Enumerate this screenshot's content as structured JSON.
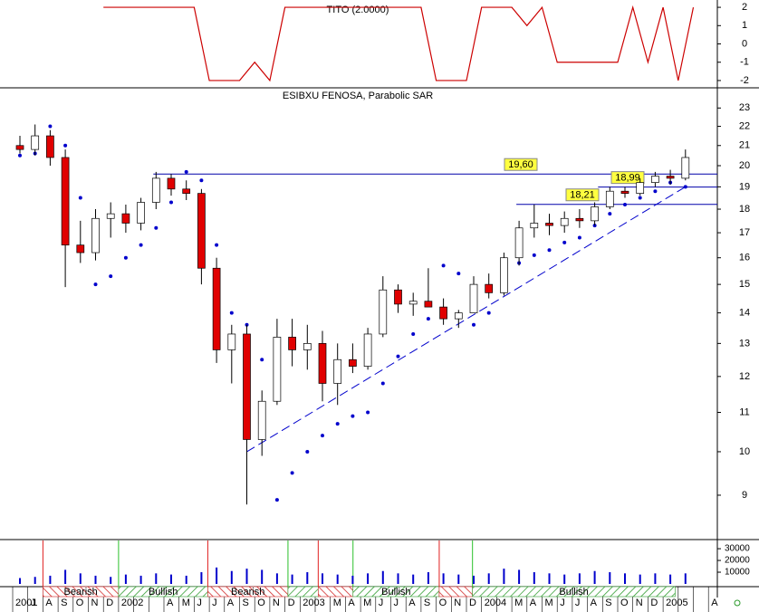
{
  "chart_data": {
    "type": "candlestick",
    "title": "ESIBXU FENOSA, Parabolic SAR",
    "categories": [
      "2001",
      "J",
      "A",
      "S",
      "O",
      "N",
      "D",
      "2002",
      null,
      null,
      "A",
      "M",
      "J",
      "J",
      "A",
      "S",
      "O",
      "N",
      "D",
      "2003",
      null,
      "M",
      "A",
      "M",
      "J",
      "J",
      "A",
      "S",
      "O",
      "N",
      "D",
      "2004",
      null,
      "M",
      "A",
      "M",
      "J",
      "J",
      "A",
      "S",
      "O",
      "N",
      "D",
      "2005",
      null,
      null,
      "A"
    ],
    "open": [
      21.0,
      20.8,
      21.5,
      20.4,
      16.5,
      16.2,
      17.6,
      17.8,
      17.4,
      18.3,
      19.4,
      18.9,
      18.7,
      15.6,
      12.8,
      13.3,
      10.3,
      11.3,
      13.2,
      12.8,
      13.0,
      11.8,
      12.5,
      12.3,
      13.3,
      14.8,
      14.3,
      14.4,
      14.2,
      13.8,
      14.0,
      15.0,
      14.7,
      16.0,
      17.2,
      17.4,
      17.3,
      17.6,
      17.5,
      18.1,
      18.8,
      18.7,
      19.2,
      19.5,
      19.4,
      null,
      null
    ],
    "high": [
      21.5,
      22.1,
      21.8,
      20.8,
      17.5,
      18.0,
      18.3,
      18.2,
      18.5,
      19.7,
      19.6,
      19.3,
      18.9,
      16.0,
      13.6,
      13.6,
      11.6,
      13.8,
      13.8,
      13.6,
      13.4,
      13.0,
      13.0,
      13.5,
      15.3,
      15.0,
      14.7,
      15.6,
      14.5,
      14.1,
      15.3,
      15.4,
      16.2,
      17.5,
      18.2,
      17.8,
      17.9,
      18.0,
      18.3,
      19.0,
      19.0,
      19.4,
      19.7,
      19.8,
      20.8,
      null,
      null
    ],
    "low": [
      20.6,
      20.5,
      20.0,
      14.9,
      15.8,
      15.9,
      16.8,
      17.0,
      17.1,
      18.0,
      18.6,
      18.4,
      15.0,
      12.4,
      11.8,
      8.8,
      9.9,
      11.2,
      12.3,
      12.2,
      11.3,
      11.2,
      12.1,
      12.2,
      13.2,
      14.0,
      13.9,
      14.2,
      13.6,
      13.5,
      14.0,
      14.5,
      14.6,
      15.7,
      16.8,
      16.9,
      17.0,
      17.2,
      17.3,
      18.0,
      18.5,
      18.6,
      19.0,
      19.1,
      19.3,
      null,
      null
    ],
    "close": [
      20.8,
      21.5,
      20.4,
      16.5,
      16.2,
      17.6,
      17.8,
      17.4,
      18.3,
      19.4,
      18.9,
      18.7,
      15.6,
      12.8,
      13.3,
      10.3,
      11.3,
      13.2,
      12.8,
      13.0,
      11.8,
      12.5,
      12.3,
      13.3,
      14.8,
      14.3,
      14.4,
      14.2,
      13.8,
      14.0,
      15.0,
      14.7,
      16.0,
      17.2,
      17.4,
      17.3,
      17.6,
      17.5,
      18.1,
      18.8,
      18.7,
      19.2,
      19.5,
      19.4,
      20.4,
      null,
      null
    ],
    "sar": {
      "color": "#0000cc",
      "values": [
        20.5,
        20.6,
        22.0,
        21.0,
        18.5,
        15.0,
        15.3,
        16.0,
        16.5,
        17.2,
        18.3,
        19.7,
        19.3,
        16.5,
        14.0,
        13.6,
        12.5,
        8.9,
        9.5,
        10.0,
        10.4,
        10.7,
        10.9,
        11.0,
        11.8,
        12.6,
        13.3,
        13.8,
        15.7,
        15.4,
        13.6,
        14.0,
        14.8,
        15.8,
        16.1,
        16.3,
        16.6,
        16.8,
        17.3,
        17.8,
        18.2,
        18.5,
        18.8,
        19.2,
        19.0,
        null,
        null
      ]
    },
    "up_color": "#ffffff",
    "down_color": "#e00000",
    "log_scale": true,
    "ylim": [
      8.1,
      24.1
    ],
    "yticks": [
      9,
      10,
      11,
      12,
      13,
      14,
      15,
      16,
      17,
      18,
      19,
      20,
      21,
      22,
      23
    ],
    "trendline": {
      "x": [
        15,
        44
      ],
      "values": [
        10.0,
        19.0
      ],
      "color": "#0000cc"
    },
    "levels": [
      {
        "value": 19.6,
        "label": "19,60",
        "from": 9.3
      },
      {
        "value": 18.99,
        "label": "18,99",
        "from": 38.7
      },
      {
        "value": 18.21,
        "label": "18,21",
        "from": 33.3
      }
    ],
    "indicator": {
      "title": "TITO (2.0000)",
      "color": "#cc0000",
      "values": [
        null,
        null,
        null,
        null,
        null,
        null,
        2,
        2,
        2,
        2,
        2,
        2,
        2,
        -2,
        -2,
        -2,
        -1,
        -2,
        2,
        2,
        2,
        2,
        2,
        2,
        2,
        2,
        2,
        2,
        -2,
        -2,
        -2,
        2,
        2,
        2,
        1,
        2,
        -1,
        -1,
        -1,
        -1,
        -1,
        2,
        -1,
        2,
        -2,
        2,
        null
      ],
      "ylim": [
        -2.3,
        2.4
      ],
      "yticks": [
        2,
        1,
        0,
        -1,
        -2
      ]
    },
    "volume": {
      "color": "#0000cc",
      "values": [
        5000,
        6000,
        7000,
        12000,
        9000,
        7000,
        6000,
        8000,
        7000,
        9000,
        8000,
        7000,
        10000,
        14000,
        11000,
        13000,
        12000,
        9000,
        8000,
        10000,
        9000,
        8000,
        7000,
        9000,
        11000,
        9000,
        8000,
        10000,
        9000,
        8000,
        7000,
        9000,
        13000,
        12000,
        10000,
        9000,
        8000,
        9000,
        11000,
        10000,
        9000,
        8000,
        9000,
        8000,
        9000,
        null,
        null
      ],
      "ylim": [
        0,
        37000
      ],
      "yticks": [
        30000,
        20000,
        10000
      ]
    },
    "phases": [
      {
        "trend": "bearish",
        "label": "Bearish",
        "from": 2,
        "to": 7
      },
      {
        "trend": "bullish",
        "label": "Bullish",
        "from": 7,
        "to": 12.9
      },
      {
        "trend": "bearish",
        "label": "Bearish",
        "from": 12.9,
        "to": 18.2
      },
      {
        "trend": "bullish",
        "from": 18.2,
        "to": 20.2
      },
      {
        "trend": "bearish",
        "from": 20.2,
        "to": 22.5
      },
      {
        "trend": "bullish",
        "label": "Bullish",
        "from": 22.5,
        "to": 28.2
      },
      {
        "trend": "bearish",
        "from": 28.2,
        "to": 30.4
      },
      {
        "trend": "bullish",
        "label": "Bullish",
        "from": 30.4,
        "to": 43.8
      }
    ]
  }
}
